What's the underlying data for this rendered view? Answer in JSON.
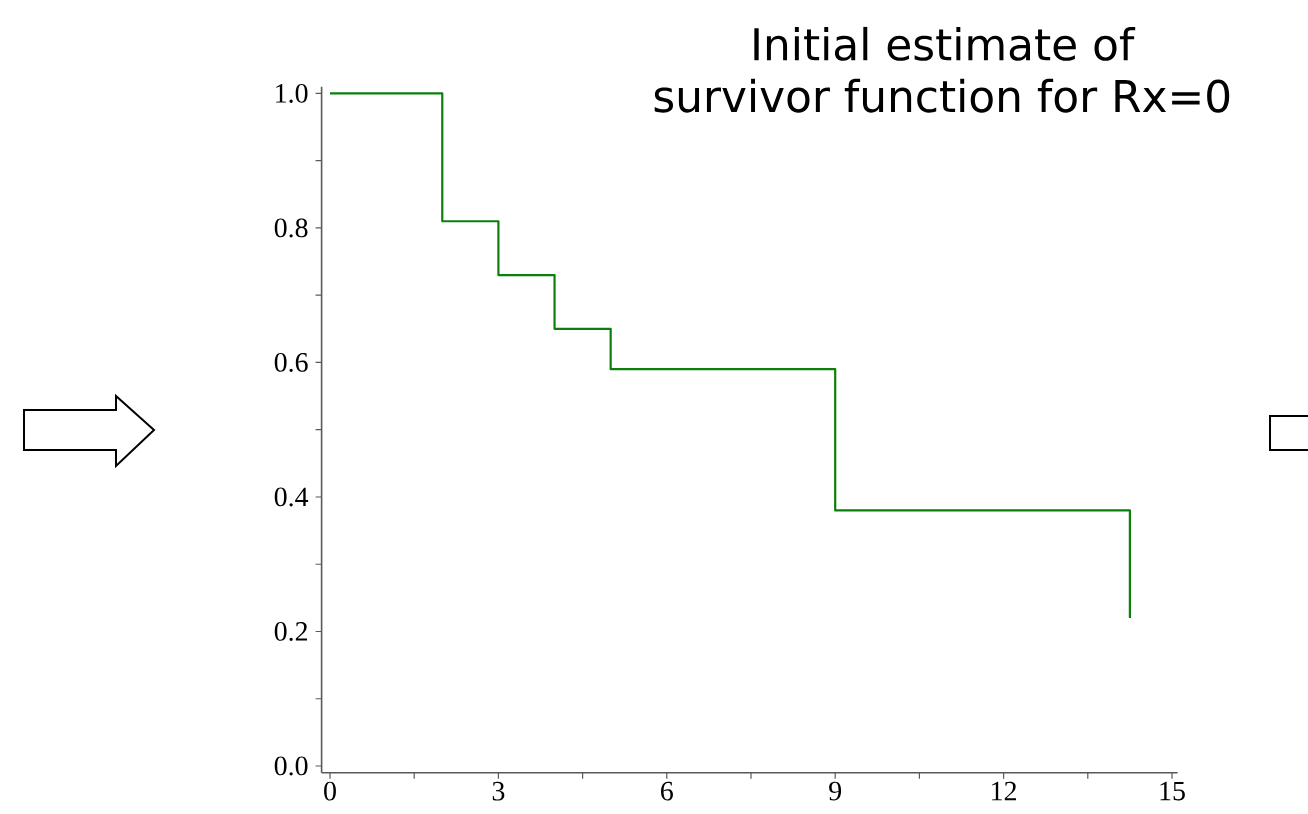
{
  "chart_data": {
    "type": "step",
    "title": "Initial estimate of\nsurvivor function for Rx=0",
    "x": [
      0,
      2,
      3,
      4,
      5,
      9,
      14.25
    ],
    "series": [
      {
        "color": "#0a800a",
        "values": [
          1,
          0.81,
          0.73,
          0.65,
          0.59,
          0.38,
          0.22
        ]
      }
    ],
    "xlim": [
      -0.15,
      15.1
    ],
    "ylim": [
      -0.01,
      1.01
    ],
    "xticks": [
      0,
      {
        "value": 1.5,
        "label": null
      },
      3,
      {
        "value": 4.5,
        "label": null
      },
      6,
      {
        "value": 7.5,
        "label": null
      },
      9,
      {
        "value": 10.5,
        "label": null
      },
      12,
      {
        "value": 13.5,
        "label": null
      },
      15
    ],
    "yticks": [
      {
        "value": 0,
        "label": "0.0"
      },
      {
        "value": 0.1,
        "label": null
      },
      {
        "value": 0.2,
        "label": "0.2"
      },
      {
        "value": 0.3,
        "label": null
      },
      {
        "value": 0.4,
        "label": "0.4"
      },
      {
        "value": 0.5,
        "label": null
      },
      {
        "value": 0.6,
        "label": "0.6"
      },
      {
        "value": 0.7,
        "label": null
      },
      {
        "value": 0.8,
        "label": "0.8"
      },
      {
        "value": 0.9,
        "label": null
      },
      {
        "value": 1,
        "label": "1.0"
      }
    ],
    "marker": "none",
    "line_style": "solid"
  }
}
